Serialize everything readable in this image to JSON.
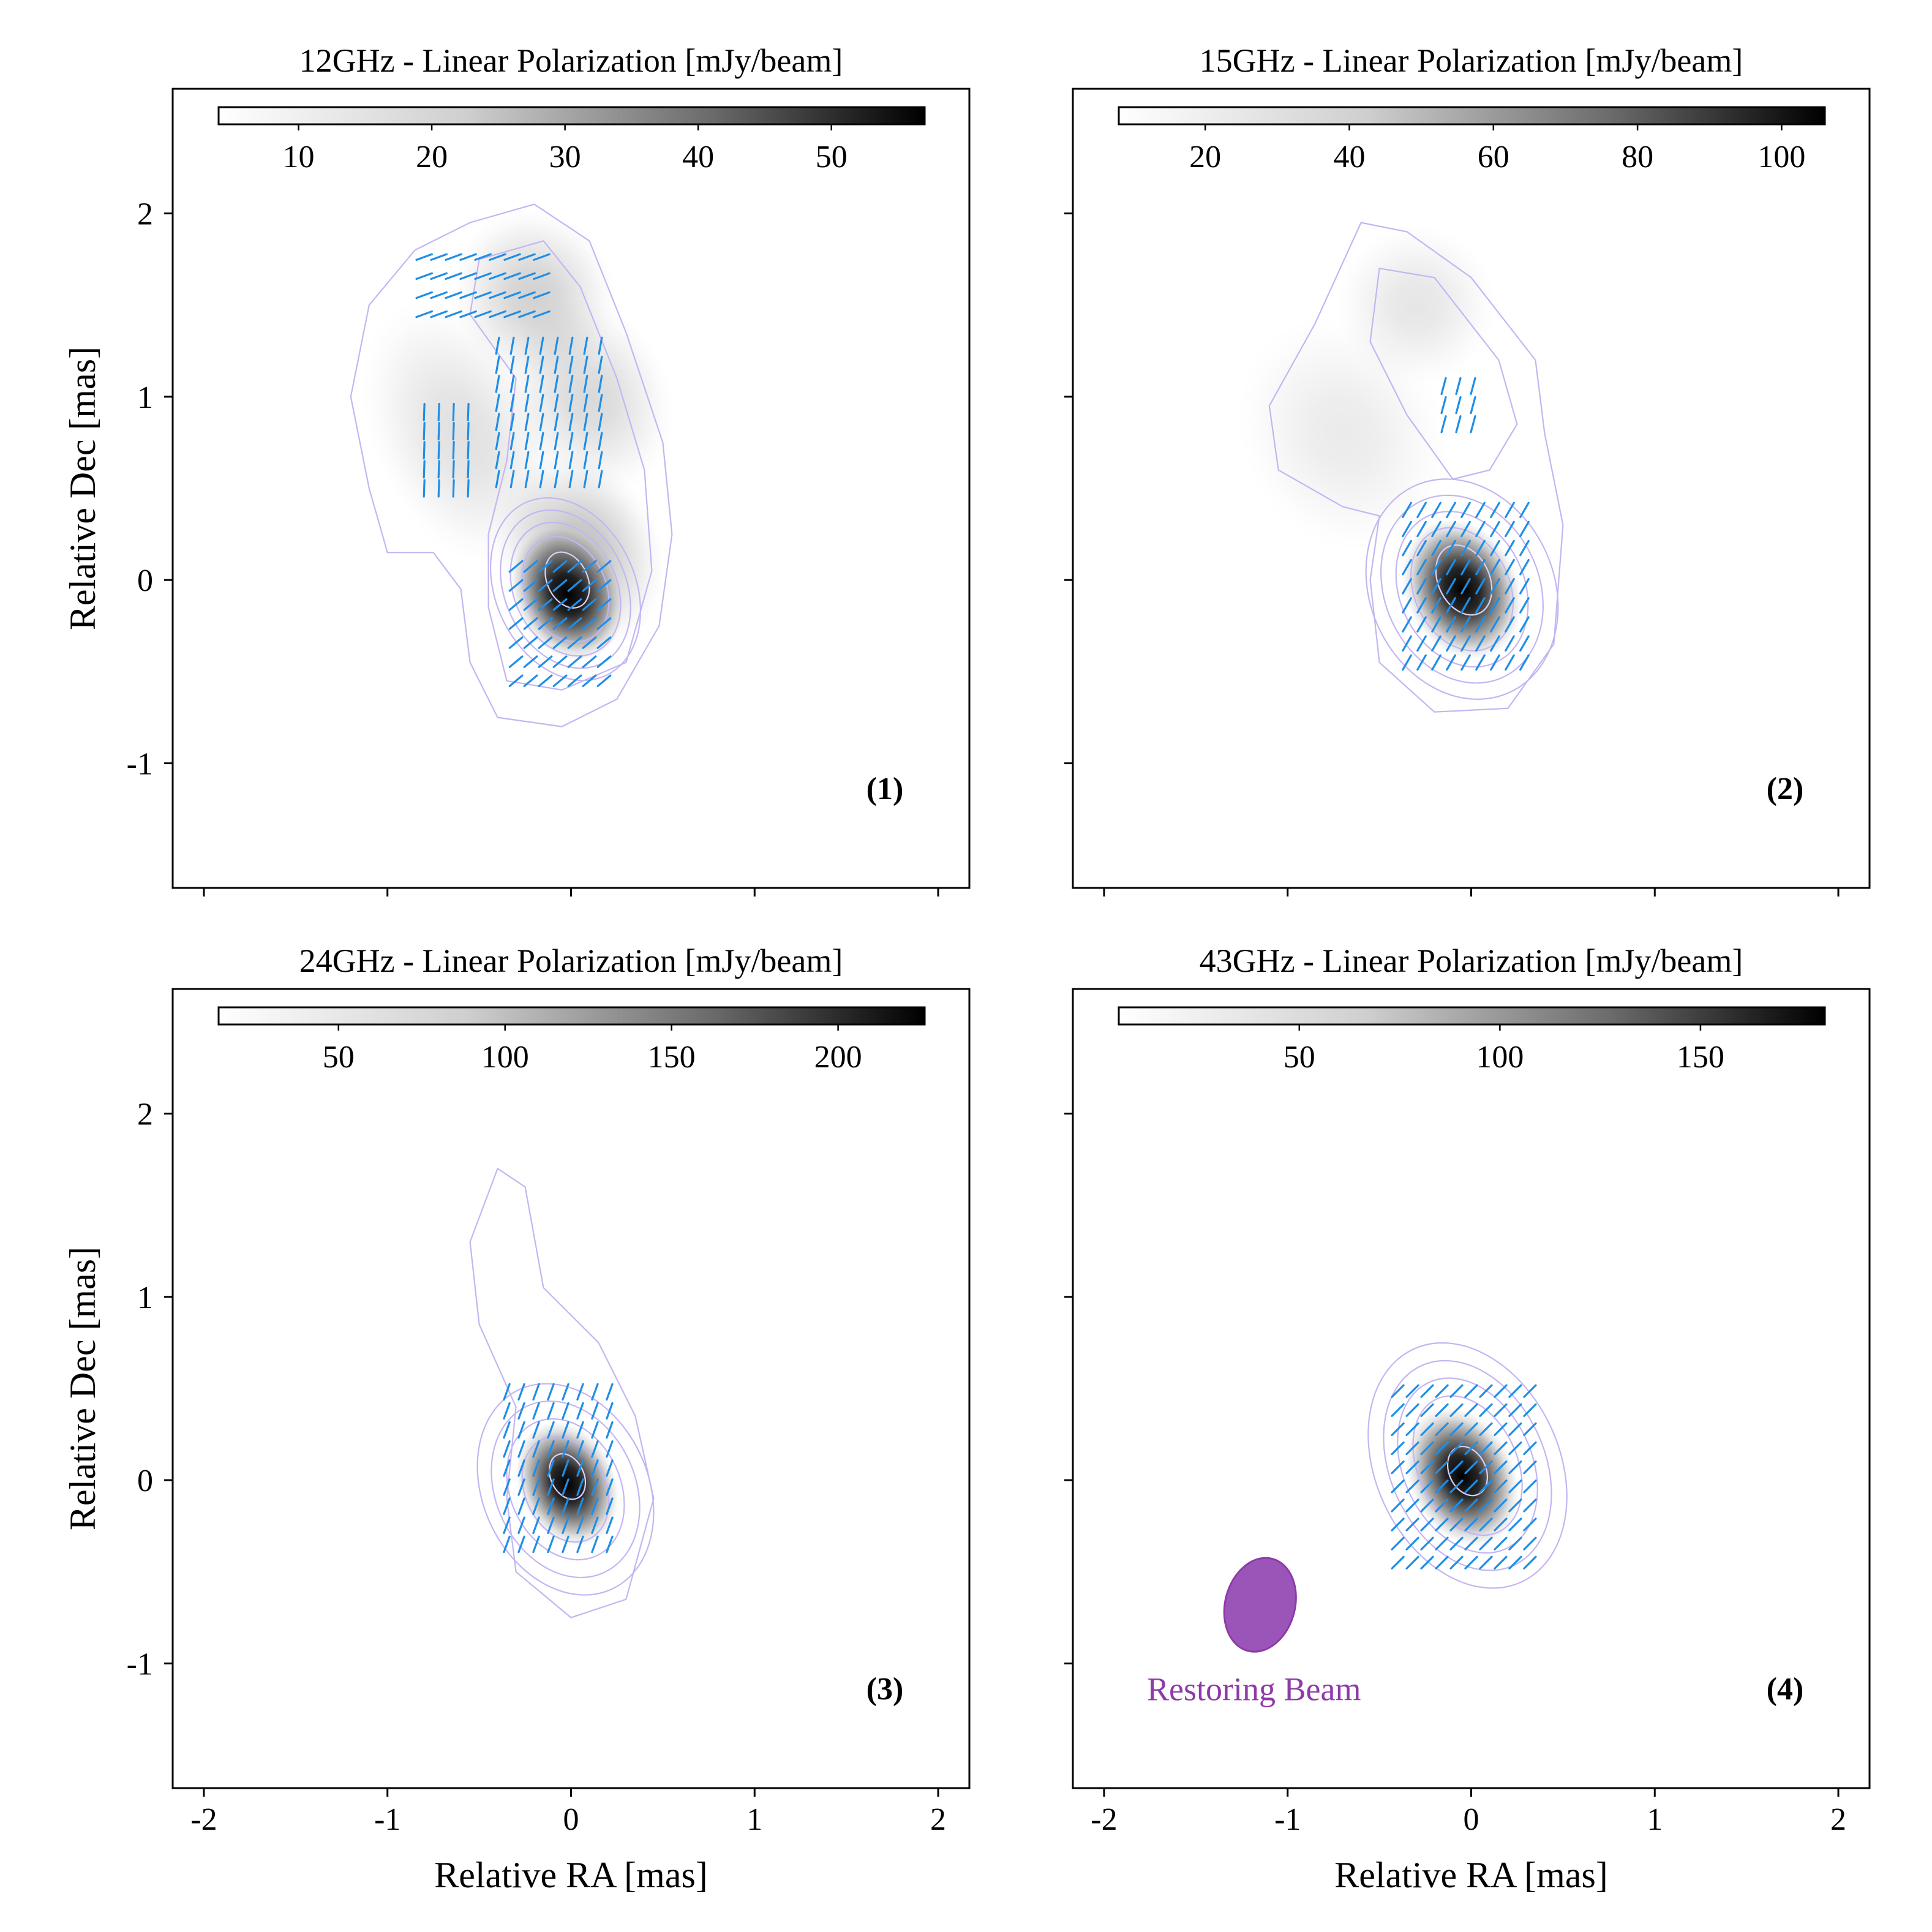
{
  "chart_data": [
    {
      "type": "heatmap",
      "title": "12GHz - Linear Polarization [mJy/beam]",
      "panel_label": "(1)",
      "colorbar": {
        "min": 4,
        "max": 57,
        "ticks": [
          10,
          20,
          30,
          40,
          50
        ],
        "tick_labels": [
          "10",
          "20",
          "30",
          "40",
          "50"
        ]
      },
      "xlabel": "",
      "ylabel": "Relative Dec [mas]",
      "xlim": [
        -2.17,
        2.17
      ],
      "ylim": [
        -1.68,
        2.68
      ],
      "xticks": [
        -2,
        -1,
        0,
        1,
        2
      ],
      "xtick_labels": [],
      "yticks": [
        -1,
        0,
        1,
        2
      ],
      "ytick_labels": [
        "-1",
        "0",
        "1",
        "2"
      ],
      "blobs": [
        {
          "x": -0.02,
          "y": -0.08,
          "sx": 0.13,
          "sy": 0.17,
          "peak": 1.0
        },
        {
          "x": 0.05,
          "y": 0.15,
          "sx": 0.2,
          "sy": 0.25,
          "peak": 0.25
        },
        {
          "x": -0.2,
          "y": 1.55,
          "sx": 0.2,
          "sy": 0.22,
          "peak": 0.18
        },
        {
          "x": 0.1,
          "y": 1.0,
          "sx": 0.2,
          "sy": 0.25,
          "peak": 0.15
        },
        {
          "x": -0.6,
          "y": 0.8,
          "sx": 0.22,
          "sy": 0.35,
          "peak": 0.12
        }
      ],
      "contours": [
        {
          "cx": -0.03,
          "cy": -0.05,
          "rx": 0.38,
          "ry": 0.52
        },
        {
          "cx": -0.03,
          "cy": -0.05,
          "rx": 0.33,
          "ry": 0.45
        },
        {
          "cx": -0.03,
          "cy": -0.05,
          "rx": 0.28,
          "ry": 0.38
        },
        {
          "cx": -0.03,
          "cy": -0.05,
          "rx": 0.22,
          "ry": 0.3
        },
        {
          "cx": -0.02,
          "cy": 0.0,
          "rx": 0.11,
          "ry": 0.16
        }
      ],
      "outer_contours": [
        [
          [
            -0.55,
            1.95
          ],
          [
            -0.2,
            2.05
          ],
          [
            0.1,
            1.85
          ],
          [
            0.3,
            1.35
          ],
          [
            0.5,
            0.75
          ],
          [
            0.55,
            0.25
          ],
          [
            0.48,
            -0.25
          ],
          [
            0.25,
            -0.65
          ],
          [
            -0.05,
            -0.8
          ],
          [
            -0.4,
            -0.75
          ],
          [
            -0.55,
            -0.45
          ],
          [
            -0.6,
            -0.05
          ],
          [
            -0.75,
            0.15
          ],
          [
            -1.0,
            0.15
          ],
          [
            -1.1,
            0.5
          ],
          [
            -1.2,
            1.0
          ],
          [
            -1.1,
            1.5
          ],
          [
            -0.85,
            1.8
          ],
          [
            -0.55,
            1.95
          ]
        ],
        [
          [
            -0.5,
            1.75
          ],
          [
            -0.15,
            1.85
          ],
          [
            0.05,
            1.6
          ],
          [
            0.25,
            1.1
          ],
          [
            0.4,
            0.6
          ],
          [
            0.44,
            0.05
          ],
          [
            0.3,
            -0.45
          ],
          [
            -0.05,
            -0.6
          ],
          [
            -0.35,
            -0.55
          ],
          [
            -0.45,
            -0.15
          ],
          [
            -0.45,
            0.25
          ],
          [
            -0.35,
            0.65
          ],
          [
            -0.3,
            1.1
          ],
          [
            -0.55,
            1.45
          ],
          [
            -0.5,
            1.75
          ]
        ]
      ],
      "vectors": [
        {
          "x0": -0.8,
          "x1": -0.55,
          "y0": 0.5,
          "y1": 0.95,
          "step": 0.08,
          "angle": 88
        },
        {
          "x0": -0.4,
          "x1": 0.2,
          "y0": 0.55,
          "y1": 1.3,
          "step": 0.08,
          "angle": 80
        },
        {
          "x0": -0.8,
          "x1": -0.1,
          "y0": 1.45,
          "y1": 1.85,
          "step": 0.08,
          "angle": 20
        },
        {
          "x0": -0.3,
          "x1": 0.2,
          "y0": -0.55,
          "y1": 0.1,
          "step": 0.08,
          "angle": 40
        }
      ]
    },
    {
      "type": "heatmap",
      "title": "15GHz - Linear Polarization [mJy/beam]",
      "panel_label": "(2)",
      "colorbar": {
        "min": 8,
        "max": 106,
        "ticks": [
          20,
          40,
          60,
          80,
          100
        ],
        "tick_labels": [
          "20",
          "40",
          "60",
          "80",
          "100"
        ]
      },
      "xlabel": "",
      "ylabel": "",
      "xlim": [
        -2.17,
        2.17
      ],
      "ylim": [
        -1.68,
        2.68
      ],
      "xticks": [
        -2,
        -1,
        0,
        1,
        2
      ],
      "xtick_labels": [],
      "yticks": [
        -1,
        0,
        1,
        2
      ],
      "ytick_labels": [],
      "blobs": [
        {
          "x": -0.05,
          "y": -0.05,
          "sx": 0.14,
          "sy": 0.18,
          "peak": 1.0
        },
        {
          "x": -0.3,
          "y": 1.5,
          "sx": 0.2,
          "sy": 0.2,
          "peak": 0.1
        },
        {
          "x": -0.7,
          "y": 0.8,
          "sx": 0.25,
          "sy": 0.3,
          "peak": 0.08
        }
      ],
      "contours": [
        {
          "cx": -0.05,
          "cy": -0.05,
          "rx": 0.5,
          "ry": 0.62
        },
        {
          "cx": -0.05,
          "cy": -0.05,
          "rx": 0.42,
          "ry": 0.53
        },
        {
          "cx": -0.05,
          "cy": -0.05,
          "rx": 0.34,
          "ry": 0.44
        },
        {
          "cx": -0.05,
          "cy": -0.05,
          "rx": 0.26,
          "ry": 0.35
        },
        {
          "cx": -0.04,
          "cy": 0.0,
          "rx": 0.14,
          "ry": 0.2
        }
      ],
      "outer_contours": [
        [
          [
            -0.6,
            1.95
          ],
          [
            -0.35,
            1.9
          ],
          [
            0.0,
            1.65
          ],
          [
            0.35,
            1.2
          ],
          [
            0.4,
            0.8
          ],
          [
            0.5,
            0.3
          ],
          [
            0.45,
            -0.35
          ],
          [
            0.2,
            -0.7
          ],
          [
            -0.2,
            -0.72
          ],
          [
            -0.5,
            -0.45
          ],
          [
            -0.55,
            0.0
          ],
          [
            -0.5,
            0.35
          ],
          [
            -0.7,
            0.4
          ],
          [
            -1.05,
            0.6
          ],
          [
            -1.1,
            0.95
          ],
          [
            -0.85,
            1.4
          ],
          [
            -0.6,
            1.95
          ]
        ],
        [
          [
            -0.5,
            1.7
          ],
          [
            -0.2,
            1.65
          ],
          [
            0.15,
            1.2
          ],
          [
            0.25,
            0.85
          ],
          [
            0.1,
            0.6
          ],
          [
            -0.1,
            0.55
          ],
          [
            -0.35,
            0.9
          ],
          [
            -0.55,
            1.3
          ],
          [
            -0.5,
            1.7
          ]
        ]
      ],
      "vectors": [
        {
          "x0": -0.15,
          "x1": 0.05,
          "y0": 0.85,
          "y1": 1.1,
          "step": 0.08,
          "angle": 75
        },
        {
          "x0": -0.35,
          "x1": 0.3,
          "y0": -0.45,
          "y1": 0.45,
          "step": 0.08,
          "angle": 60
        }
      ]
    },
    {
      "type": "heatmap",
      "title": "24GHz - Linear Polarization [mJy/beam]",
      "panel_label": "(3)",
      "colorbar": {
        "min": 14,
        "max": 226,
        "ticks": [
          50,
          100,
          150,
          200
        ],
        "tick_labels": [
          "50",
          "100",
          "150",
          "200"
        ]
      },
      "xlabel": "Relative RA [mas]",
      "ylabel": "Relative Dec [mas]",
      "xlim": [
        -2.17,
        2.17
      ],
      "ylim": [
        -1.68,
        2.68
      ],
      "xticks": [
        -2,
        -1,
        0,
        1,
        2
      ],
      "xtick_labels": [
        "-2",
        "-1",
        "0",
        "1",
        "2"
      ],
      "yticks": [
        -1,
        0,
        1,
        2
      ],
      "ytick_labels": [
        "-1",
        "0",
        "1",
        "2"
      ],
      "blobs": [
        {
          "x": -0.02,
          "y": -0.02,
          "sx": 0.12,
          "sy": 0.16,
          "peak": 1.0
        }
      ],
      "contours": [
        {
          "cx": -0.03,
          "cy": -0.05,
          "rx": 0.45,
          "ry": 0.6
        },
        {
          "cx": -0.03,
          "cy": -0.05,
          "rx": 0.38,
          "ry": 0.5
        },
        {
          "cx": -0.03,
          "cy": -0.05,
          "rx": 0.3,
          "ry": 0.4
        },
        {
          "cx": -0.03,
          "cy": -0.05,
          "rx": 0.22,
          "ry": 0.3
        },
        {
          "cx": -0.02,
          "cy": 0.02,
          "rx": 0.09,
          "ry": 0.13
        }
      ],
      "outer_contours": [
        [
          [
            -0.4,
            1.7
          ],
          [
            -0.25,
            1.6
          ],
          [
            -0.15,
            1.05
          ],
          [
            0.15,
            0.75
          ],
          [
            0.35,
            0.35
          ],
          [
            0.45,
            -0.1
          ],
          [
            0.3,
            -0.65
          ],
          [
            0.0,
            -0.75
          ],
          [
            -0.3,
            -0.5
          ],
          [
            -0.35,
            -0.1
          ],
          [
            -0.3,
            0.4
          ],
          [
            -0.5,
            0.85
          ],
          [
            -0.55,
            1.3
          ],
          [
            -0.4,
            1.7
          ]
        ]
      ],
      "vectors": [
        {
          "x0": -0.35,
          "x1": 0.25,
          "y0": -0.35,
          "y1": 0.55,
          "step": 0.08,
          "angle": 70
        }
      ]
    },
    {
      "type": "heatmap",
      "title": "43GHz - Linear Polarization [mJy/beam]",
      "panel_label": "(4)",
      "colorbar": {
        "min": 5,
        "max": 181,
        "ticks": [
          50,
          100,
          150
        ],
        "tick_labels": [
          "50",
          "100",
          "150"
        ]
      },
      "xlabel": "Relative RA [mas]",
      "ylabel": "",
      "xlim": [
        -2.17,
        2.17
      ],
      "ylim": [
        -1.68,
        2.68
      ],
      "xticks": [
        -2,
        -1,
        0,
        1,
        2
      ],
      "xtick_labels": [
        "-2",
        "-1",
        "0",
        "1",
        "2"
      ],
      "yticks": [
        -1,
        0,
        1,
        2
      ],
      "ytick_labels": [],
      "blobs": [
        {
          "x": -0.05,
          "y": 0.02,
          "sx": 0.13,
          "sy": 0.18,
          "peak": 1.0
        }
      ],
      "contours": [
        {
          "cx": -0.02,
          "cy": 0.08,
          "rx": 0.5,
          "ry": 0.7
        },
        {
          "cx": -0.02,
          "cy": 0.08,
          "rx": 0.42,
          "ry": 0.6
        },
        {
          "cx": -0.02,
          "cy": 0.08,
          "rx": 0.35,
          "ry": 0.5
        },
        {
          "cx": -0.02,
          "cy": 0.08,
          "rx": 0.27,
          "ry": 0.4
        },
        {
          "cx": -0.02,
          "cy": 0.05,
          "rx": 0.1,
          "ry": 0.14
        }
      ],
      "outer_contours": [],
      "vectors": [
        {
          "x0": -0.4,
          "x1": 0.35,
          "y0": -0.45,
          "y1": 0.55,
          "step": 0.08,
          "angle": 45
        }
      ],
      "restoring_beam": {
        "label": "Restoring Beam",
        "x": -1.15,
        "y": -0.68,
        "major_mas": 0.52,
        "minor_mas": 0.38,
        "pa_deg": 15,
        "color": "#8e3aa8"
      }
    }
  ],
  "colors": {
    "contour": "#c4b5f2",
    "inner_contour": "#d9d1f5",
    "vector": "#1f8ee6",
    "beam": "#8e3aa8"
  }
}
